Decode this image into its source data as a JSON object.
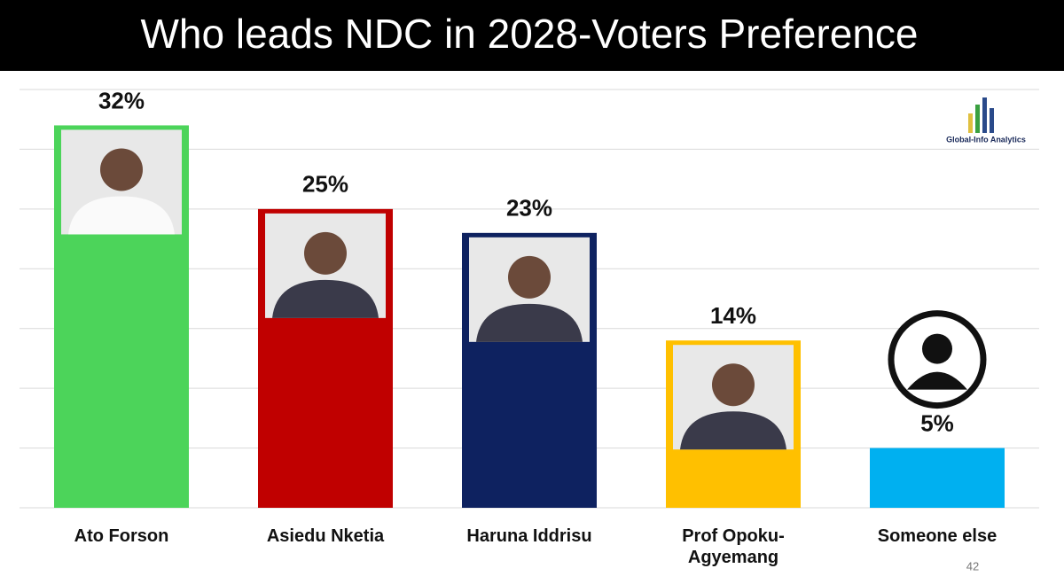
{
  "chart_data": {
    "type": "bar",
    "title": "Who leads NDC in 2028-Voters Preference",
    "categories": [
      "Ato Forson",
      "Asiedu Nketia",
      "Haruna Iddrisu",
      "Prof Opoku-Agyemang",
      "Someone else"
    ],
    "values": [
      32,
      25,
      23,
      14,
      5
    ],
    "value_labels": [
      "32%",
      "25%",
      "23%",
      "14%",
      "5%"
    ],
    "colors": [
      "#4cd45a",
      "#c00000",
      "#0e2260",
      "#ffc000",
      "#00b0f0"
    ],
    "ylim": [
      0,
      35
    ],
    "yticks": [
      0,
      5,
      10,
      15,
      20,
      25,
      30,
      35
    ],
    "grid": true,
    "logo_text": "Global-Info Analytics",
    "page_number": "42"
  }
}
